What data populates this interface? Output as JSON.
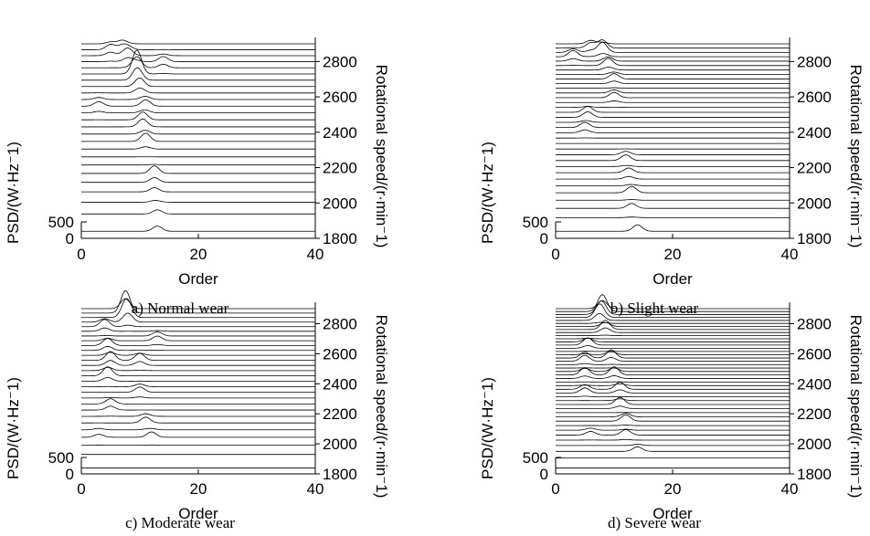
{
  "chart_data": [
    {
      "type": "line",
      "subtype": "waterfall",
      "caption": "a) Normal wear",
      "xlabel": "Order",
      "ylabel": "PSD/(W·Hz⁻1)",
      "zlabel": "Rotational speed/(r·min⁻1)",
      "x_ticks": [
        "0",
        "20",
        "40"
      ],
      "y_ticks": [
        "0",
        "500"
      ],
      "z_ticks": [
        "1800",
        "2000",
        "2200",
        "2400",
        "2600",
        "2800"
      ],
      "xlim": [
        0,
        40
      ],
      "zlim": [
        1800,
        2900
      ],
      "num_lines": 25,
      "peaks": [
        {
          "speed": 1850,
          "order": 13,
          "amp": 6
        },
        {
          "speed": 1950,
          "order": 13,
          "amp": 5
        },
        {
          "speed": 2050,
          "order": 12.5,
          "amp": 5
        },
        {
          "speed": 2150,
          "order": 12.5,
          "amp": 10
        },
        {
          "speed": 2350,
          "order": 11,
          "amp": 9
        },
        {
          "speed": 2450,
          "order": 10.5,
          "amp": 11
        },
        {
          "speed": 2550,
          "order": 3,
          "amp": 5
        },
        {
          "speed": 2550,
          "order": 11,
          "amp": 7
        },
        {
          "speed": 2650,
          "order": 10,
          "amp": 9
        },
        {
          "speed": 2730,
          "order": 9.5,
          "amp": 26
        },
        {
          "speed": 2790,
          "order": 14,
          "amp": 6
        },
        {
          "speed": 2830,
          "order": 8,
          "amp": 8
        },
        {
          "speed": 2860,
          "order": 5,
          "amp": 6
        },
        {
          "speed": 2880,
          "order": 7,
          "amp": 5
        }
      ]
    },
    {
      "type": "line",
      "subtype": "waterfall",
      "caption": "b) Slight wear",
      "xlabel": "Order",
      "ylabel": "PSD/(W·Hz⁻1)",
      "zlabel": "Rotational speed/(r·min⁻1)",
      "x_ticks": [
        "0",
        "20",
        "40"
      ],
      "y_ticks": [
        "0",
        "500"
      ],
      "z_ticks": [
        "1800",
        "2000",
        "2200",
        "2400",
        "2600",
        "2800"
      ],
      "xlim": [
        0,
        40
      ],
      "zlim": [
        1800,
        2900
      ],
      "num_lines": 34,
      "peaks": [
        {
          "speed": 1850,
          "order": 14,
          "amp": 8
        },
        {
          "speed": 1960,
          "order": 13,
          "amp": 6
        },
        {
          "speed": 2060,
          "order": 13,
          "amp": 7
        },
        {
          "speed": 2160,
          "order": 12.5,
          "amp": 6
        },
        {
          "speed": 2250,
          "order": 12,
          "amp": 7
        },
        {
          "speed": 2420,
          "order": 5,
          "amp": 6
        },
        {
          "speed": 2500,
          "order": 5.5,
          "amp": 8
        },
        {
          "speed": 2600,
          "order": 10,
          "amp": 6
        },
        {
          "speed": 2700,
          "order": 10,
          "amp": 6
        },
        {
          "speed": 2780,
          "order": 9,
          "amp": 8
        },
        {
          "speed": 2830,
          "order": 3,
          "amp": 7
        },
        {
          "speed": 2860,
          "order": 8,
          "amp": 12
        },
        {
          "speed": 2880,
          "order": 6,
          "amp": 6
        }
      ]
    },
    {
      "type": "line",
      "subtype": "waterfall",
      "caption": "c) Moderate wear",
      "xlabel": "Order",
      "ylabel": "PSD/(W·Hz⁻1)",
      "zlabel": "Rotational speed/(r·min⁻1)",
      "x_ticks": [
        "0",
        "20",
        "40"
      ],
      "y_ticks": [
        "0",
        "500"
      ],
      "z_ticks": [
        "1800",
        "2000",
        "2200",
        "2400",
        "2600",
        "2800"
      ],
      "xlim": [
        0,
        40
      ],
      "zlim": [
        1800,
        2900
      ],
      "num_lines": 28,
      "peaks": [
        {
          "speed": 2050,
          "order": 12,
          "amp": 6
        },
        {
          "speed": 2060,
          "order": 3,
          "amp": 4
        },
        {
          "speed": 2150,
          "order": 11,
          "amp": 7
        },
        {
          "speed": 2250,
          "order": 5,
          "amp": 7
        },
        {
          "speed": 2350,
          "order": 10,
          "amp": 6
        },
        {
          "speed": 2450,
          "order": 4.5,
          "amp": 10
        },
        {
          "speed": 2550,
          "order": 5,
          "amp": 10
        },
        {
          "speed": 2550,
          "order": 10,
          "amp": 8
        },
        {
          "speed": 2650,
          "order": 4.5,
          "amp": 8
        },
        {
          "speed": 2700,
          "order": 13,
          "amp": 6
        },
        {
          "speed": 2780,
          "order": 4,
          "amp": 8
        },
        {
          "speed": 2830,
          "order": 8,
          "amp": 12
        },
        {
          "speed": 2870,
          "order": 7.5,
          "amp": 22
        }
      ]
    },
    {
      "type": "line",
      "subtype": "waterfall",
      "caption": "d) Severe wear",
      "xlabel": "Order",
      "ylabel": "PSD/(W·Hz⁻1)",
      "zlabel": "Rotational speed/(r·min⁻1)",
      "x_ticks": [
        "0",
        "20",
        "40"
      ],
      "y_ticks": [
        "0",
        "500"
      ],
      "z_ticks": [
        "1800",
        "2000",
        "2200",
        "2400",
        "2600",
        "2800"
      ],
      "xlim": [
        0,
        40
      ],
      "zlim": [
        1800,
        2900
      ],
      "num_lines": 42,
      "peaks": [
        {
          "speed": 1960,
          "order": 14,
          "amp": 6
        },
        {
          "speed": 2060,
          "order": 12,
          "amp": 6
        },
        {
          "speed": 2070,
          "order": 6,
          "amp": 5
        },
        {
          "speed": 2160,
          "order": 12,
          "amp": 8
        },
        {
          "speed": 2260,
          "order": 11,
          "amp": 8
        },
        {
          "speed": 2350,
          "order": 5,
          "amp": 7
        },
        {
          "speed": 2360,
          "order": 11,
          "amp": 8
        },
        {
          "speed": 2460,
          "order": 5,
          "amp": 8
        },
        {
          "speed": 2460,
          "order": 10,
          "amp": 9
        },
        {
          "speed": 2560,
          "order": 5,
          "amp": 8
        },
        {
          "speed": 2570,
          "order": 9.5,
          "amp": 9
        },
        {
          "speed": 2660,
          "order": 5.5,
          "amp": 8
        },
        {
          "speed": 2760,
          "order": 8.5,
          "amp": 10
        },
        {
          "speed": 2840,
          "order": 7.5,
          "amp": 14
        },
        {
          "speed": 2880,
          "order": 8,
          "amp": 18
        }
      ]
    }
  ]
}
